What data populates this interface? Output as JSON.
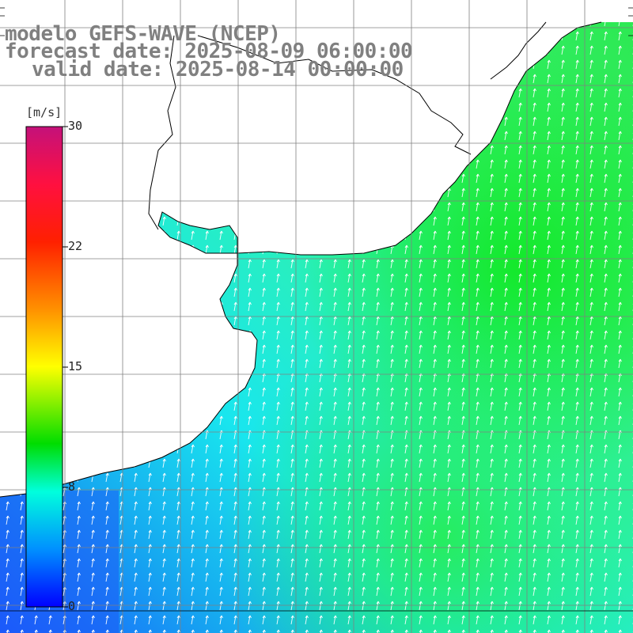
{
  "title": {
    "line1": "modelo GEFS-WAVE (NCEP)",
    "line2": "forecast date: 2025-08-09 06:00:00",
    "line3": "valid date: 2025-08-14 00:00:00"
  },
  "colorbar": {
    "unit": "[m/s]",
    "ticks": [
      "30",
      "22",
      "15",
      "8",
      "0"
    ],
    "colors": [
      "#c4117a",
      "#ff0000",
      "#ff8000",
      "#ffff00",
      "#00dd00",
      "#00ffff",
      "#0000ff"
    ]
  },
  "field": {
    "variable": "wind speed and direction",
    "typical_range": "8-14 m/s",
    "dominant_direction": "from the south (arrows pointing north/north-northeast)"
  },
  "colors": {
    "land": "#ffffff",
    "coastline": "#000000",
    "grid": "#808080"
  }
}
